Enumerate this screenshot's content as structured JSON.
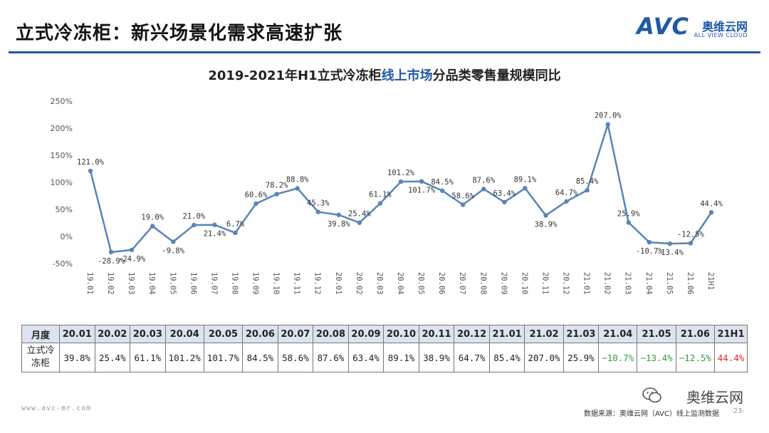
{
  "header": {
    "title": "立式冷冻柜：新兴场景化需求高速扩张",
    "logo_brand": "AVC",
    "logo_cn": "奥维云网",
    "logo_en": "ALL VIEW CLOUD"
  },
  "colors": {
    "line": "#5a84b6",
    "accent": "#1f5aa6",
    "negative": "#2e9e3e",
    "highlight": "#e5262e"
  },
  "chart_data": {
    "type": "line",
    "title_parts": [
      "2019-2021年H1立式冷冻柜",
      "线上市场",
      "分品类零售量规模同比"
    ],
    "categories": [
      "19.01",
      "19.02",
      "19.03",
      "19.04",
      "19.05",
      "19.06",
      "19.07",
      "19.08",
      "19.09",
      "19.10",
      "19.11",
      "19.12",
      "20.01",
      "20.02",
      "20.03",
      "20.04",
      "20.05",
      "20.06",
      "20.07",
      "20.08",
      "20.09",
      "20.10",
      "20.11",
      "20.12",
      "21.01",
      "21.02",
      "21.03",
      "21.04",
      "21.05",
      "21.06",
      "21H1"
    ],
    "values": [
      121.0,
      -28.9,
      -24.9,
      19.0,
      -9.8,
      21.0,
      21.4,
      6.7,
      60.6,
      78.2,
      88.8,
      45.3,
      39.8,
      25.4,
      61.1,
      101.2,
      101.7,
      84.5,
      58.6,
      87.6,
      63.4,
      89.1,
      38.9,
      64.7,
      85.4,
      207.0,
      25.9,
      -10.7,
      -13.4,
      -12.5,
      44.4
    ],
    "labels": [
      "121.0%",
      "-28.9%",
      "-24.9%",
      "19.0%",
      "-9.8%",
      "21.0%",
      "21.4%",
      "6.7%",
      "60.6%",
      "78.2%",
      "88.8%",
      "45.3%",
      "39.8%",
      "25.4%",
      "61.1%",
      "101.2%",
      "101.7%",
      "84.5%",
      "58.6%",
      "87.6%",
      "63.4%",
      "89.1%",
      "38.9%",
      "64.7%",
      "85.4%",
      "207.0%",
      "25.9%",
      "-10.7%",
      "-13.4%",
      "-12.5%",
      "44.4%"
    ],
    "ylim": [
      -50,
      250
    ],
    "yticks": [
      "-50%",
      "0%",
      "50%",
      "100%",
      "150%",
      "200%",
      "250%"
    ],
    "grid": false
  },
  "table": {
    "header_label": "月度",
    "row_label": "立式冷冻柜",
    "months": [
      "20.01",
      "20.02",
      "20.03",
      "20.04",
      "20.05",
      "20.06",
      "20.07",
      "20.08",
      "20.09",
      "20.10",
      "20.11",
      "20.12",
      "21.01",
      "21.02",
      "21.03",
      "21.04",
      "21.05",
      "21.06",
      "21H1"
    ],
    "values": [
      "39.8%",
      "25.4%",
      "61.1%",
      "101.2%",
      "101.7%",
      "84.5%",
      "58.6%",
      "87.6%",
      "63.4%",
      "89.1%",
      "38.9%",
      "64.7%",
      "85.4%",
      "207.0%",
      "25.9%",
      "−10.7%",
      "−13.4%",
      "−12.5%",
      "44.4%"
    ],
    "value_styles": [
      "normal",
      "normal",
      "normal",
      "normal",
      "normal",
      "normal",
      "normal",
      "normal",
      "normal",
      "normal",
      "normal",
      "normal",
      "normal",
      "normal",
      "normal",
      "negative",
      "negative",
      "negative",
      "highlight"
    ]
  },
  "footer": {
    "url": "www.avc-mr.com",
    "source": "数据来源：奥维云网（AVC）线上监测数据",
    "page": "-23-",
    "wechat": "奥维云网"
  }
}
